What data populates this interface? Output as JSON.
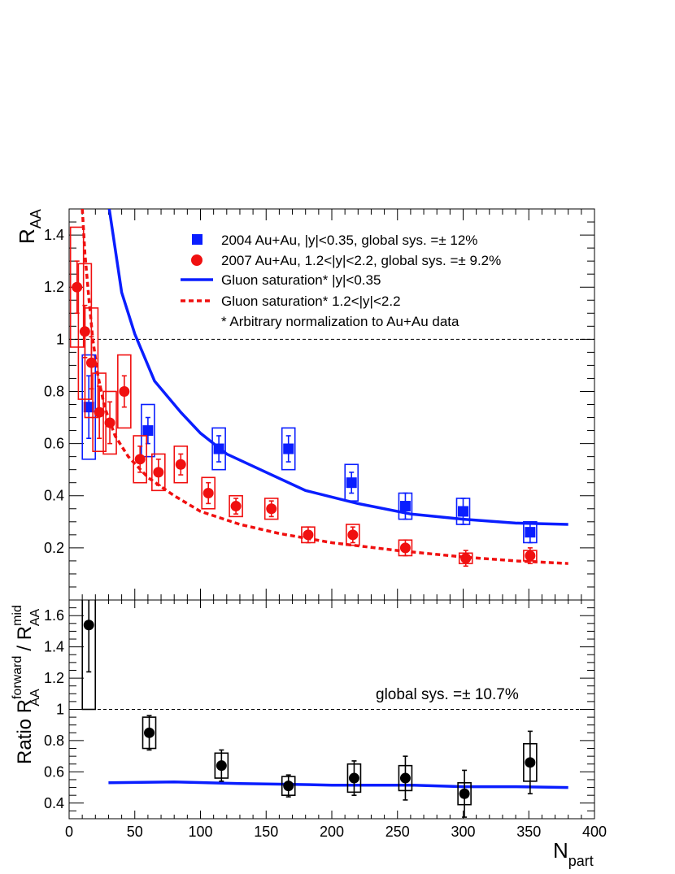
{
  "colors": {
    "blue": "#0a1eff",
    "red": "#f01010",
    "black": "#000000"
  },
  "chart_data": [
    {
      "type": "scatter",
      "panel": "top",
      "ylabel_main": "R",
      "ylabel_sub": "AA",
      "xlim": [
        0,
        400
      ],
      "ylim": [
        0.0,
        1.5
      ],
      "yticks": [
        "0.2",
        "0.4",
        "0.6",
        "0.8",
        "1",
        "1.2",
        "1.4"
      ],
      "reference_line": 1,
      "legend": {
        "placement": "top-right",
        "entries": [
          "2004 Au+Au,    |y|<0.35,     global sys. =± 12%",
          "2007 Au+Au,  1.2<|y|<2.2,  global sys. =± 9.2%",
          "Gluon saturation* |y|<0.35",
          "Gluon saturation* 1.2<|y|<2.2",
          "* Arbitrary normalization to Au+Au data"
        ]
      },
      "series": [
        {
          "name": "2004 Au+Au,    |y|<0.35,     global sys. =± 12%",
          "marker": "square",
          "color": "blue",
          "points": [
            {
              "x": 15,
              "y": 0.74,
              "err": 0.12,
              "sys": 0.2
            },
            {
              "x": 60,
              "y": 0.65,
              "err": 0.05,
              "sys": 0.1
            },
            {
              "x": 114,
              "y": 0.58,
              "err": 0.05,
              "sys": 0.08
            },
            {
              "x": 167,
              "y": 0.58,
              "err": 0.05,
              "sys": 0.08
            },
            {
              "x": 215,
              "y": 0.45,
              "err": 0.04,
              "sys": 0.07
            },
            {
              "x": 256,
              "y": 0.36,
              "err": 0.05,
              "sys": 0.05
            },
            {
              "x": 300,
              "y": 0.34,
              "err": 0.05,
              "sys": 0.05
            },
            {
              "x": 351,
              "y": 0.26,
              "err": 0.04,
              "sys": 0.04
            }
          ]
        },
        {
          "name": "2007 Au+Au,  1.2<|y|<2.2,  global sys. =± 9.2%",
          "marker": "circle",
          "color": "red",
          "points": [
            {
              "x": 6,
              "y": 1.2,
              "err": 0.1,
              "sys": 0.23
            },
            {
              "x": 12,
              "y": 1.03,
              "err": 0.1,
              "sys": 0.26
            },
            {
              "x": 17,
              "y": 0.91,
              "err": 0.1,
              "sys": 0.21
            },
            {
              "x": 23,
              "y": 0.72,
              "err": 0.1,
              "sys": 0.15
            },
            {
              "x": 31,
              "y": 0.68,
              "err": 0.08,
              "sys": 0.12
            },
            {
              "x": 42,
              "y": 0.8,
              "err": 0.06,
              "sys": 0.14
            },
            {
              "x": 54,
              "y": 0.54,
              "err": 0.05,
              "sys": 0.09
            },
            {
              "x": 68,
              "y": 0.49,
              "err": 0.05,
              "sys": 0.07
            },
            {
              "x": 85,
              "y": 0.52,
              "err": 0.04,
              "sys": 0.07
            },
            {
              "x": 106,
              "y": 0.41,
              "err": 0.04,
              "sys": 0.06
            },
            {
              "x": 127,
              "y": 0.36,
              "err": 0.03,
              "sys": 0.04
            },
            {
              "x": 154,
              "y": 0.35,
              "err": 0.03,
              "sys": 0.04
            },
            {
              "x": 182,
              "y": 0.25,
              "err": 0.03,
              "sys": 0.03
            },
            {
              "x": 216,
              "y": 0.25,
              "err": 0.03,
              "sys": 0.04
            },
            {
              "x": 256,
              "y": 0.2,
              "err": 0.03,
              "sys": 0.03
            },
            {
              "x": 302,
              "y": 0.16,
              "err": 0.03,
              "sys": 0.02
            },
            {
              "x": 351,
              "y": 0.17,
              "err": 0.03,
              "sys": 0.02
            }
          ]
        }
      ],
      "curves": [
        {
          "name": "Gluon saturation* |y|<0.35",
          "color": "blue",
          "style": "solid",
          "x": [
            30,
            40,
            50,
            65,
            85,
            100,
            120,
            150,
            180,
            220,
            260,
            300,
            340,
            380
          ],
          "y": [
            1.52,
            1.18,
            1.02,
            0.84,
            0.72,
            0.64,
            0.56,
            0.49,
            0.42,
            0.37,
            0.33,
            0.31,
            0.295,
            0.29
          ]
        },
        {
          "name": "Gluon saturation* 1.2<|y|<2.2",
          "color": "red",
          "style": "dashed",
          "x": [
            10,
            12,
            15,
            18,
            22,
            27,
            35,
            45,
            60,
            80,
            100,
            130,
            160,
            200,
            250,
            300,
            340,
            380
          ],
          "y": [
            1.5,
            1.33,
            1.16,
            1.0,
            0.86,
            0.74,
            0.63,
            0.55,
            0.47,
            0.4,
            0.34,
            0.29,
            0.255,
            0.22,
            0.19,
            0.165,
            0.15,
            0.14
          ]
        }
      ]
    },
    {
      "type": "scatter",
      "panel": "bottom",
      "ylabel_main": "Ratio R",
      "ylabel_sup1": "forward",
      "ylabel_sub1": "AA",
      "ylabel_mid": " / R",
      "ylabel_sup2": "mid",
      "ylabel_sub2": "AA",
      "xlabel_main": "N",
      "xlabel_sub": "part",
      "xlim": [
        0,
        400
      ],
      "ylim": [
        0.3,
        1.7
      ],
      "xticks": [
        "0",
        "50",
        "100",
        "150",
        "200",
        "250",
        "300",
        "350",
        "400"
      ],
      "yticks": [
        "0.4",
        "0.6",
        "0.8",
        "1",
        "1.2",
        "1.4",
        "1.6"
      ],
      "reference_line": 1,
      "annotation": "global sys. =± 10.7%",
      "series": [
        {
          "marker": "circle",
          "color": "black",
          "points": [
            {
              "x": 15,
              "y": 1.54,
              "err": 0.3,
              "sys": 0.54
            },
            {
              "x": 61,
              "y": 0.85,
              "err": 0.11,
              "sys": 0.1
            },
            {
              "x": 116,
              "y": 0.64,
              "err": 0.1,
              "sys": 0.08
            },
            {
              "x": 167,
              "y": 0.51,
              "err": 0.07,
              "sys": 0.06
            },
            {
              "x": 217,
              "y": 0.56,
              "err": 0.11,
              "sys": 0.09
            },
            {
              "x": 256,
              "y": 0.56,
              "err": 0.14,
              "sys": 0.08
            },
            {
              "x": 301,
              "y": 0.46,
              "err": 0.15,
              "sys": 0.07
            },
            {
              "x": 351,
              "y": 0.66,
              "err": 0.2,
              "sys": 0.12
            }
          ]
        }
      ],
      "curves": [
        {
          "color": "blue",
          "style": "solid",
          "x": [
            30,
            80,
            130,
            170,
            200,
            260,
            300,
            340,
            380
          ],
          "y": [
            0.53,
            0.535,
            0.525,
            0.52,
            0.515,
            0.515,
            0.505,
            0.505,
            0.5
          ]
        }
      ]
    }
  ]
}
